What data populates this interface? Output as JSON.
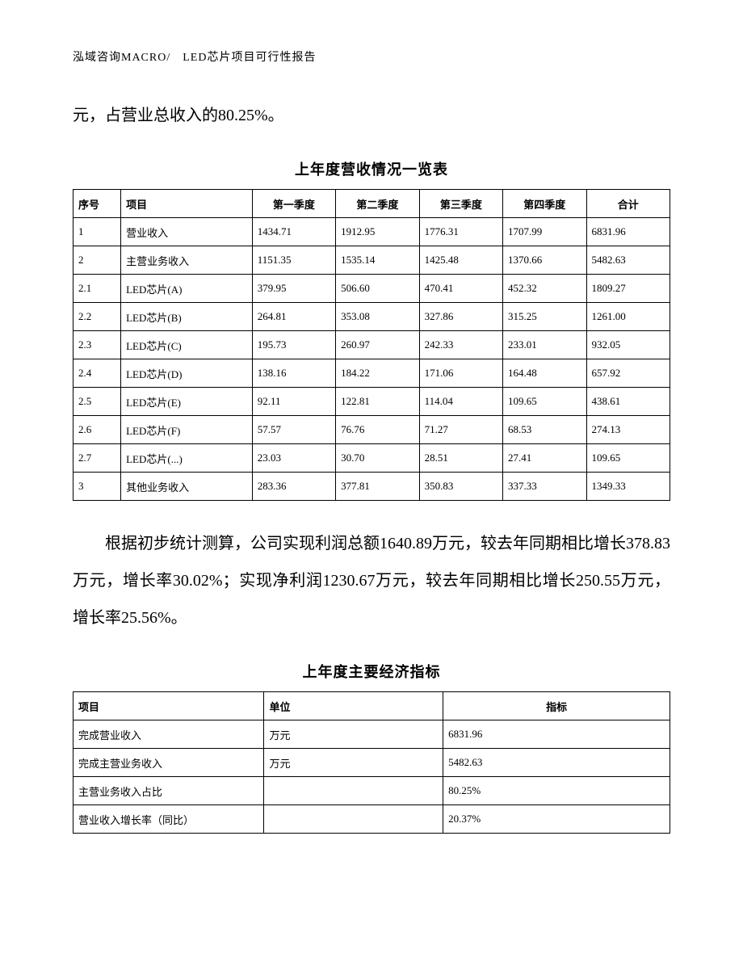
{
  "header": "泓域咨询MACRO/　LED芯片项目可行性报告",
  "para1": "元，占营业总收入的80.25%。",
  "table1_title": "上年度营收情况一览表",
  "table1": {
    "type": "table",
    "border_color": "#000000",
    "background_color": "#ffffff",
    "header_font_weight": "bold",
    "font_size": 13,
    "columns": [
      "序号",
      "项目",
      "第一季度",
      "第二季度",
      "第三季度",
      "第四季度",
      "合计"
    ],
    "rows": [
      [
        "1",
        "营业收入",
        "1434.71",
        "1912.95",
        "1776.31",
        "1707.99",
        "6831.96"
      ],
      [
        "2",
        "主营业务收入",
        "1151.35",
        "1535.14",
        "1425.48",
        "1370.66",
        "5482.63"
      ],
      [
        "2.1",
        "LED芯片(A)",
        "379.95",
        "506.60",
        "470.41",
        "452.32",
        "1809.27"
      ],
      [
        "2.2",
        "LED芯片(B)",
        "264.81",
        "353.08",
        "327.86",
        "315.25",
        "1261.00"
      ],
      [
        "2.3",
        "LED芯片(C)",
        "195.73",
        "260.97",
        "242.33",
        "233.01",
        "932.05"
      ],
      [
        "2.4",
        "LED芯片(D)",
        "138.16",
        "184.22",
        "171.06",
        "164.48",
        "657.92"
      ],
      [
        "2.5",
        "LED芯片(E)",
        "92.11",
        "122.81",
        "114.04",
        "109.65",
        "438.61"
      ],
      [
        "2.6",
        "LED芯片(F)",
        "57.57",
        "76.76",
        "71.27",
        "68.53",
        "274.13"
      ],
      [
        "2.7",
        "LED芯片(...)",
        "23.03",
        "30.70",
        "28.51",
        "27.41",
        "109.65"
      ],
      [
        "3",
        "其他业务收入",
        "283.36",
        "377.81",
        "350.83",
        "337.33",
        "1349.33"
      ]
    ]
  },
  "para2": "根据初步统计测算，公司实现利润总额1640.89万元，较去年同期相比增长378.83万元，增长率30.02%；实现净利润1230.67万元，较去年同期相比增长250.55万元，增长率25.56%。",
  "table2_title": "上年度主要经济指标",
  "table2": {
    "type": "table",
    "border_color": "#000000",
    "background_color": "#ffffff",
    "header_font_weight": "bold",
    "font_size": 13,
    "columns": [
      "项目",
      "单位",
      "指标"
    ],
    "rows": [
      [
        "完成营业收入",
        "万元",
        "6831.96"
      ],
      [
        "完成主营业务收入",
        "万元",
        "5482.63"
      ],
      [
        "主营业务收入占比",
        "",
        "80.25%"
      ],
      [
        "营业收入增长率（同比）",
        "",
        "20.37%"
      ]
    ]
  }
}
